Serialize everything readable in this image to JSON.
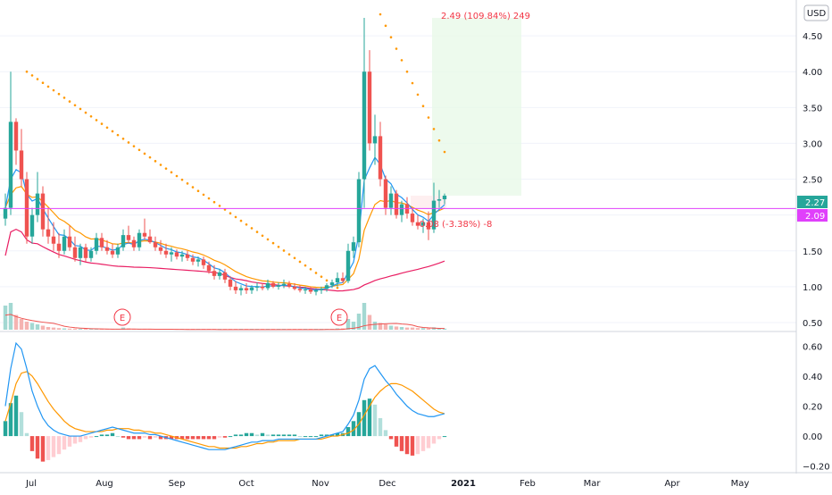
{
  "chart_data": [
    {
      "type": "candlestick",
      "currency": "USD",
      "y_axis": {
        "ticks": [
          0.5,
          1.0,
          1.5,
          2.0,
          2.5,
          3.0,
          3.5,
          4.0,
          4.5
        ],
        "tick_labels": [
          "0.50",
          "1.00",
          "1.50",
          "2.00",
          "2.50",
          "3.00",
          "3.50",
          "4.00",
          "4.50"
        ],
        "range": [
          0.45,
          4.9
        ]
      },
      "x_axis": {
        "tick_labels": [
          "Jul",
          "Aug",
          "Sep",
          "Oct",
          "Nov",
          "Dec",
          "2021",
          "Feb",
          "Mar",
          "Apr",
          "May"
        ]
      },
      "price_labels": {
        "last": "2.27",
        "line": "2.09",
        "line_value": 2.09,
        "last_value": 2.27
      },
      "colors": {
        "up": "#26a69a",
        "down": "#ef5350",
        "ema_fast": "#2196f3",
        "ema_slow": "#ff9800",
        "ma_long": "#e91e63",
        "psar": "#ff9800",
        "hline": "#e040fb",
        "range_box": "#e8f9e8"
      },
      "annotations": {
        "measure_up": "2.49 (109.84%) 249",
        "measure_down": "-0.08 (-3.38%) -8",
        "earnings_marker": "E"
      },
      "candles": [
        [
          1.95,
          2.3,
          1.85,
          2.1
        ],
        [
          2.1,
          4.0,
          2.0,
          3.3
        ],
        [
          3.3,
          3.35,
          2.7,
          2.9
        ],
        [
          2.9,
          3.2,
          2.4,
          2.5
        ],
        [
          2.5,
          2.6,
          1.6,
          1.7
        ],
        [
          1.7,
          2.1,
          1.6,
          2.0
        ],
        [
          2.0,
          2.6,
          1.9,
          2.3
        ],
        [
          2.3,
          2.4,
          1.7,
          1.8
        ],
        [
          1.8,
          2.1,
          1.6,
          1.7
        ],
        [
          1.7,
          1.9,
          1.5,
          1.6
        ],
        [
          1.6,
          1.75,
          1.4,
          1.5
        ],
        [
          1.5,
          1.8,
          1.45,
          1.7
        ],
        [
          1.7,
          1.85,
          1.5,
          1.55
        ],
        [
          1.55,
          1.7,
          1.35,
          1.4
        ],
        [
          1.4,
          1.6,
          1.3,
          1.55
        ],
        [
          1.55,
          1.6,
          1.35,
          1.4
        ],
        [
          1.4,
          1.55,
          1.35,
          1.5
        ],
        [
          1.5,
          1.75,
          1.45,
          1.68
        ],
        [
          1.68,
          1.75,
          1.5,
          1.55
        ],
        [
          1.55,
          1.65,
          1.45,
          1.5
        ],
        [
          1.5,
          1.6,
          1.4,
          1.45
        ],
        [
          1.45,
          1.6,
          1.4,
          1.55
        ],
        [
          1.55,
          1.8,
          1.5,
          1.72
        ],
        [
          1.72,
          1.85,
          1.6,
          1.65
        ],
        [
          1.65,
          1.7,
          1.5,
          1.55
        ],
        [
          1.55,
          1.8,
          1.5,
          1.75
        ],
        [
          1.75,
          1.95,
          1.65,
          1.7
        ],
        [
          1.7,
          1.8,
          1.6,
          1.62
        ],
        [
          1.62,
          1.7,
          1.5,
          1.55
        ],
        [
          1.55,
          1.65,
          1.45,
          1.5
        ],
        [
          1.5,
          1.6,
          1.4,
          1.45
        ],
        [
          1.45,
          1.55,
          1.35,
          1.48
        ],
        [
          1.48,
          1.52,
          1.38,
          1.42
        ],
        [
          1.42,
          1.5,
          1.35,
          1.45
        ],
        [
          1.45,
          1.5,
          1.36,
          1.4
        ],
        [
          1.4,
          1.45,
          1.3,
          1.35
        ],
        [
          1.35,
          1.42,
          1.28,
          1.38
        ],
        [
          1.38,
          1.42,
          1.25,
          1.3
        ],
        [
          1.3,
          1.35,
          1.18,
          1.22
        ],
        [
          1.22,
          1.3,
          1.1,
          1.15
        ],
        [
          1.15,
          1.25,
          1.1,
          1.2
        ],
        [
          1.2,
          1.25,
          1.05,
          1.1
        ],
        [
          1.1,
          1.15,
          0.95,
          1.0
        ],
        [
          1.0,
          1.08,
          0.9,
          0.95
        ],
        [
          0.95,
          1.02,
          0.88,
          0.98
        ],
        [
          0.98,
          1.05,
          0.9,
          0.95
        ],
        [
          0.95,
          1.02,
          0.9,
          0.99
        ],
        [
          0.99,
          1.06,
          0.94,
          1.0
        ],
        [
          1.0,
          1.05,
          0.95,
          0.98
        ],
        [
          0.98,
          1.1,
          0.95,
          1.05
        ],
        [
          1.05,
          1.08,
          0.98,
          1.0
        ],
        [
          1.0,
          1.06,
          0.96,
          1.02
        ],
        [
          1.02,
          1.1,
          0.98,
          1.04
        ],
        [
          1.04,
          1.08,
          0.98,
          1.0
        ],
        [
          1.0,
          1.05,
          0.95,
          0.97
        ],
        [
          0.97,
          1.02,
          0.92,
          0.95
        ],
        [
          0.95,
          1.0,
          0.9,
          0.96
        ],
        [
          0.96,
          1.0,
          0.9,
          0.93
        ],
        [
          0.93,
          0.98,
          0.88,
          0.95
        ],
        [
          0.95,
          1.0,
          0.9,
          0.97
        ],
        [
          0.97,
          1.05,
          0.93,
          1.02
        ],
        [
          1.02,
          1.1,
          0.98,
          1.06
        ],
        [
          1.06,
          1.2,
          1.0,
          1.12
        ],
        [
          1.12,
          1.2,
          1.05,
          1.08
        ],
        [
          1.08,
          1.6,
          1.05,
          1.5
        ],
        [
          1.5,
          1.7,
          1.4,
          1.62
        ],
        [
          1.62,
          2.6,
          1.55,
          2.5
        ],
        [
          2.5,
          4.75,
          2.1,
          4.0
        ],
        [
          4.0,
          4.3,
          2.9,
          3.0
        ],
        [
          3.0,
          3.4,
          2.7,
          3.1
        ],
        [
          3.1,
          3.3,
          2.4,
          2.5
        ],
        [
          2.5,
          2.55,
          2.0,
          2.1
        ],
        [
          2.1,
          2.4,
          2.0,
          2.3
        ],
        [
          2.3,
          2.35,
          1.95,
          2.0
        ],
        [
          2.0,
          2.2,
          1.9,
          2.15
        ],
        [
          2.15,
          2.25,
          1.95,
          2.02
        ],
        [
          2.02,
          2.1,
          1.85,
          1.9
        ],
        [
          1.9,
          2.0,
          1.8,
          1.85
        ],
        [
          1.85,
          1.95,
          1.75,
          1.9
        ],
        [
          1.9,
          2.05,
          1.65,
          1.8
        ],
        [
          1.8,
          2.45,
          1.75,
          2.2
        ],
        [
          2.2,
          2.35,
          2.1,
          2.22
        ],
        [
          2.22,
          2.3,
          2.15,
          2.27
        ]
      ],
      "volume": [
        0.9,
        1.0,
        0.55,
        0.4,
        0.3,
        0.25,
        0.2,
        0.15,
        0.1,
        0.08,
        0.06,
        0.05,
        0.04,
        0.04,
        0.03,
        0.05,
        0.04,
        0.04,
        0.03,
        0.03,
        0.02,
        0.02,
        0.08,
        0.05,
        0.03,
        0.02,
        0.02,
        0.02,
        0.02,
        0.02,
        0.02,
        0.01,
        0.01,
        0.01,
        0.01,
        0.01,
        0.01,
        0.01,
        0.01,
        0.01,
        0.01,
        0.01,
        0.01,
        0.01,
        0.01,
        0.01,
        0.01,
        0.01,
        0.01,
        0.01,
        0.01,
        0.01,
        0.01,
        0.01,
        0.01,
        0.01,
        0.01,
        0.01,
        0.01,
        0.01,
        0.02,
        0.03,
        0.05,
        0.05,
        0.4,
        0.3,
        0.6,
        1.0,
        0.55,
        0.3,
        0.25,
        0.2,
        0.15,
        0.12,
        0.1,
        0.08,
        0.08,
        0.06,
        0.06,
        0.05,
        0.09,
        0.06,
        0.04
      ],
      "macd_panel": {
        "y_ticks": [
          -0.2,
          0.0,
          0.2,
          0.4,
          0.6
        ],
        "y_tick_labels": [
          "−0.20",
          "0.00",
          "0.20",
          "0.40",
          "0.60"
        ],
        "range": [
          -0.22,
          0.65
        ],
        "macd": [
          0.2,
          0.45,
          0.62,
          0.58,
          0.45,
          0.3,
          0.2,
          0.12,
          0.07,
          0.04,
          0.02,
          0.01,
          0.0,
          0.0,
          0.0,
          0.01,
          0.02,
          0.03,
          0.04,
          0.05,
          0.06,
          0.05,
          0.04,
          0.03,
          0.02,
          0.02,
          0.02,
          0.01,
          0.01,
          0.0,
          -0.01,
          -0.02,
          -0.03,
          -0.04,
          -0.05,
          -0.06,
          -0.07,
          -0.08,
          -0.09,
          -0.09,
          -0.09,
          -0.09,
          -0.08,
          -0.07,
          -0.06,
          -0.05,
          -0.04,
          -0.04,
          -0.03,
          -0.03,
          -0.03,
          -0.02,
          -0.02,
          -0.02,
          -0.02,
          -0.02,
          -0.02,
          -0.02,
          -0.02,
          -0.01,
          0.0,
          0.01,
          0.02,
          0.03,
          0.08,
          0.14,
          0.24,
          0.38,
          0.45,
          0.47,
          0.42,
          0.37,
          0.33,
          0.28,
          0.24,
          0.2,
          0.17,
          0.15,
          0.14,
          0.13,
          0.13,
          0.14,
          0.15
        ],
        "signal": [
          0.1,
          0.22,
          0.35,
          0.42,
          0.43,
          0.4,
          0.35,
          0.29,
          0.23,
          0.18,
          0.14,
          0.1,
          0.07,
          0.05,
          0.04,
          0.03,
          0.03,
          0.03,
          0.03,
          0.04,
          0.04,
          0.05,
          0.05,
          0.05,
          0.04,
          0.04,
          0.03,
          0.03,
          0.02,
          0.02,
          0.01,
          0.0,
          -0.01,
          -0.02,
          -0.03,
          -0.04,
          -0.05,
          -0.06,
          -0.07,
          -0.07,
          -0.08,
          -0.08,
          -0.08,
          -0.08,
          -0.07,
          -0.07,
          -0.06,
          -0.05,
          -0.05,
          -0.04,
          -0.04,
          -0.03,
          -0.03,
          -0.03,
          -0.03,
          -0.02,
          -0.02,
          -0.02,
          -0.02,
          -0.02,
          -0.01,
          0.0,
          0.0,
          0.01,
          0.02,
          0.04,
          0.08,
          0.14,
          0.2,
          0.26,
          0.3,
          0.33,
          0.35,
          0.35,
          0.34,
          0.32,
          0.3,
          0.27,
          0.24,
          0.21,
          0.18,
          0.16,
          0.15
        ],
        "histogram": [
          0.1,
          0.22,
          0.27,
          0.16,
          0.02,
          -0.1,
          -0.15,
          -0.17,
          -0.16,
          -0.14,
          -0.12,
          -0.09,
          -0.07,
          -0.05,
          -0.04,
          -0.02,
          -0.01,
          0.0,
          0.01,
          0.01,
          0.02,
          0.0,
          -0.01,
          -0.02,
          -0.02,
          -0.02,
          -0.01,
          -0.02,
          -0.01,
          -0.02,
          -0.02,
          -0.02,
          -0.02,
          -0.02,
          -0.02,
          -0.02,
          -0.02,
          -0.02,
          -0.02,
          -0.02,
          -0.01,
          -0.01,
          0.0,
          0.01,
          0.01,
          0.02,
          0.02,
          0.01,
          0.02,
          0.01,
          0.01,
          0.01,
          0.01,
          0.01,
          0.01,
          0.0,
          0.0,
          0.0,
          0.0,
          0.01,
          0.01,
          0.01,
          0.02,
          0.02,
          0.06,
          0.1,
          0.16,
          0.24,
          0.25,
          0.21,
          0.12,
          0.04,
          -0.02,
          -0.07,
          -0.1,
          -0.12,
          -0.13,
          -0.12,
          -0.1,
          -0.08,
          -0.05,
          -0.02,
          0.0
        ]
      }
    }
  ]
}
